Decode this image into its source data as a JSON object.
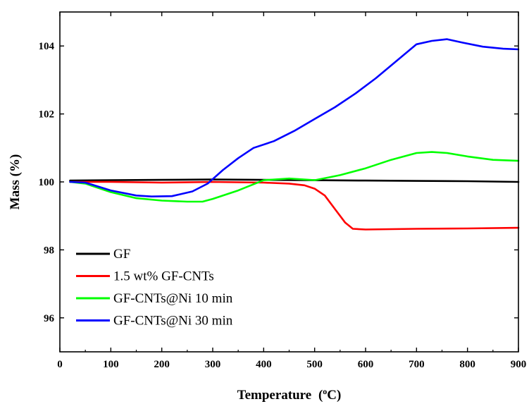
{
  "chart_data": {
    "type": "line",
    "title": "",
    "xlabel": "Temperature",
    "xlabel_unit_open": "(",
    "xlabel_unit_sup": "o",
    "xlabel_unit_close": "C)",
    "ylabel": "Mass (%)",
    "xlim": [
      0,
      900
    ],
    "ylim": [
      95,
      105
    ],
    "xticks": [
      0,
      100,
      200,
      300,
      400,
      500,
      600,
      700,
      800,
      900
    ],
    "yticks": [
      96,
      98,
      100,
      102,
      104
    ],
    "grid": false,
    "legend_position": "bottom-left",
    "series": [
      {
        "name": "GF",
        "color": "#000000",
        "x": [
          20,
          100,
          200,
          300,
          400,
          500,
          600,
          700,
          800,
          900
        ],
        "y": [
          100.04,
          100.05,
          100.06,
          100.07,
          100.06,
          100.05,
          100.04,
          100.03,
          100.02,
          100.0
        ]
      },
      {
        "name": "1.5 wt% GF-CNTs",
        "color": "#ff0000",
        "x": [
          20,
          100,
          200,
          300,
          400,
          450,
          480,
          500,
          520,
          540,
          560,
          575,
          600,
          700,
          800,
          900
        ],
        "y": [
          100.0,
          100.0,
          99.98,
          100.0,
          99.98,
          99.95,
          99.9,
          99.8,
          99.6,
          99.2,
          98.8,
          98.62,
          98.6,
          98.62,
          98.63,
          98.65
        ]
      },
      {
        "name": "GF-CNTs@Ni 10 min",
        "color": "#00ff00",
        "x": [
          20,
          50,
          100,
          150,
          200,
          250,
          280,
          300,
          350,
          400,
          450,
          500,
          550,
          600,
          650,
          700,
          730,
          760,
          800,
          850,
          900
        ],
        "y": [
          100.0,
          99.95,
          99.7,
          99.52,
          99.45,
          99.42,
          99.42,
          99.5,
          99.75,
          100.05,
          100.1,
          100.05,
          100.2,
          100.4,
          100.65,
          100.85,
          100.88,
          100.85,
          100.75,
          100.65,
          100.62
        ]
      },
      {
        "name": "GF-CNTs@Ni 30 min",
        "color": "#0000ff",
        "x": [
          20,
          50,
          100,
          150,
          180,
          220,
          260,
          290,
          320,
          350,
          380,
          420,
          460,
          500,
          540,
          580,
          620,
          660,
          700,
          730,
          760,
          790,
          830,
          870,
          900
        ],
        "y": [
          100.0,
          99.98,
          99.75,
          99.6,
          99.57,
          99.58,
          99.72,
          99.95,
          100.35,
          100.7,
          101.0,
          101.2,
          101.5,
          101.85,
          102.2,
          102.6,
          103.05,
          103.55,
          104.05,
          104.15,
          104.2,
          104.1,
          103.98,
          103.92,
          103.9
        ]
      }
    ]
  }
}
